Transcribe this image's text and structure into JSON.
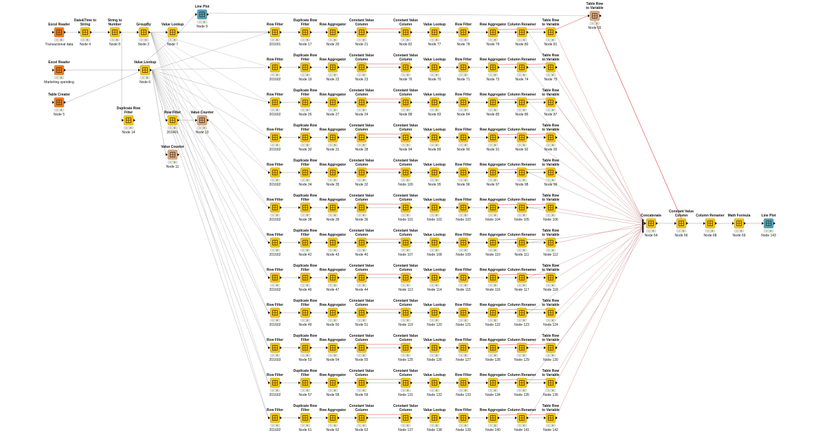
{
  "workflow": {
    "colors": {
      "manipulator": "#f5c518",
      "source": "#f07c22",
      "other": "#d9a98a",
      "visualizer": "#4aa3c9",
      "status_green": "#7fbf3f",
      "conn_gray": "#9a9a9a",
      "conn_red": "#e03a2f"
    },
    "rows": [
      {
        "cells": [
          {
            "title": "Row Filter",
            "sub": "201601"
          },
          {
            "title": "Duplicate Row Filter",
            "sub": "Node 17"
          },
          {
            "title": "Row Aggregator",
            "sub": "Node 20"
          },
          {
            "title": "Constant Value Column",
            "sub": "Node 21"
          },
          {
            "title": "Constant Value Column",
            "sub": "Node 82"
          },
          {
            "title": "Value Lookup",
            "sub": "Node 77"
          },
          {
            "title": "Row Filter",
            "sub": "Node 78"
          },
          {
            "title": "Row Aggregator",
            "sub": "Node 79"
          },
          {
            "title": "Column Renamer",
            "sub": "Node 80"
          },
          {
            "title": "Table Row to Variable",
            "sub": "Node 81"
          }
        ]
      },
      {
        "cells": [
          {
            "title": "Row Filter",
            "sub": "201602"
          },
          {
            "title": "Duplicate Row Filter",
            "sub": "Node 19"
          },
          {
            "title": "Row Aggregator",
            "sub": "Node 22"
          },
          {
            "title": "Constant Value Column",
            "sub": "Node 23"
          },
          {
            "title": "Constant Value Column",
            "sub": "Node 76"
          },
          {
            "title": "Value Lookup",
            "sub": "Node 70"
          },
          {
            "title": "Row Filter",
            "sub": "Node 71"
          },
          {
            "title": "Row Aggregator",
            "sub": "Node 73"
          },
          {
            "title": "Column Renamer",
            "sub": "Node 74"
          },
          {
            "title": "Table Row to Variable",
            "sub": "Node 75"
          }
        ]
      },
      {
        "cells": [
          {
            "title": "Row Filter",
            "sub": "201602"
          },
          {
            "title": "Duplicate Row Filter",
            "sub": "Node 26"
          },
          {
            "title": "Row Aggregator",
            "sub": "Node 27"
          },
          {
            "title": "Constant Value Column",
            "sub": "Node 24"
          },
          {
            "title": "Constant Value Column",
            "sub": "Node 88"
          },
          {
            "title": "Value Lookup",
            "sub": "Node 83"
          },
          {
            "title": "Row Filter",
            "sub": "Node 84"
          },
          {
            "title": "Row Aggregator",
            "sub": "Node 85"
          },
          {
            "title": "Column Renamer",
            "sub": "Node 86"
          },
          {
            "title": "Table Row to Variable",
            "sub": "Node 87"
          }
        ]
      },
      {
        "cells": [
          {
            "title": "Row Filter",
            "sub": "201602"
          },
          {
            "title": "Duplicate Row Filter",
            "sub": "Node 30"
          },
          {
            "title": "Row Aggregator",
            "sub": "Node 31"
          },
          {
            "title": "Constant Value Column",
            "sub": "Node 28"
          },
          {
            "title": "Constant Value Column",
            "sub": "Node 94"
          },
          {
            "title": "Value Lookup",
            "sub": "Node 89"
          },
          {
            "title": "Row Filter",
            "sub": "Node 90"
          },
          {
            "title": "Row Aggregator",
            "sub": "Node 91"
          },
          {
            "title": "Column Renamer",
            "sub": "Node 92"
          },
          {
            "title": "Table Row to Variable",
            "sub": "Node 93"
          }
        ]
      },
      {
        "cells": [
          {
            "title": "Row Filter",
            "sub": "201602"
          },
          {
            "title": "Duplicate Row Filter",
            "sub": "Node 34"
          },
          {
            "title": "Row Aggregator",
            "sub": "Node 35"
          },
          {
            "title": "Constant Value Column",
            "sub": "Node 32"
          },
          {
            "title": "Constant Value Column",
            "sub": "Node 100"
          },
          {
            "title": "Value Lookup",
            "sub": "Node 95"
          },
          {
            "title": "Row Filter",
            "sub": "Node 96"
          },
          {
            "title": "Row Aggregator",
            "sub": "Node 97"
          },
          {
            "title": "Column Renamer",
            "sub": "Node 98"
          },
          {
            "title": "Table Row to Variable",
            "sub": "Node 99"
          }
        ]
      },
      {
        "cells": [
          {
            "title": "Row Filter",
            "sub": "201602"
          },
          {
            "title": "Duplicate Row Filter",
            "sub": "Node 38"
          },
          {
            "title": "Row Aggregator",
            "sub": "Node 39"
          },
          {
            "title": "Constant Value Column",
            "sub": "Node 36"
          },
          {
            "title": "Constant Value Column",
            "sub": "Node 101"
          },
          {
            "title": "Value Lookup",
            "sub": "Node 102"
          },
          {
            "title": "Row Filter",
            "sub": "Node 103"
          },
          {
            "title": "Row Aggregator",
            "sub": "Node 104"
          },
          {
            "title": "Column Renamer",
            "sub": "Node 105"
          },
          {
            "title": "Table Row to Variable",
            "sub": "Node 106"
          }
        ]
      },
      {
        "cells": [
          {
            "title": "Row Filter",
            "sub": "201602"
          },
          {
            "title": "Duplicate Row Filter",
            "sub": "Node 42"
          },
          {
            "title": "Row Aggregator",
            "sub": "Node 43"
          },
          {
            "title": "Constant Value Column",
            "sub": "Node 40"
          },
          {
            "title": "Constant Value Column",
            "sub": "Node 107"
          },
          {
            "title": "Value Lookup",
            "sub": "Node 108"
          },
          {
            "title": "Row Filter",
            "sub": "Node 109"
          },
          {
            "title": "Row Aggregator",
            "sub": "Node 110"
          },
          {
            "title": "Column Renamer",
            "sub": "Node 111"
          },
          {
            "title": "Table Row to Variable",
            "sub": "Node 112"
          }
        ]
      },
      {
        "cells": [
          {
            "title": "Row Filter",
            "sub": "201602"
          },
          {
            "title": "Duplicate Row Filter",
            "sub": "Node 46"
          },
          {
            "title": "Row Aggregator",
            "sub": "Node 47"
          },
          {
            "title": "Constant Value Column",
            "sub": "Node 44"
          },
          {
            "title": "Constant Value Column",
            "sub": "Node 113"
          },
          {
            "title": "Value Lookup",
            "sub": "Node 114"
          },
          {
            "title": "Row Filter",
            "sub": "Node 115"
          },
          {
            "title": "Row Aggregator",
            "sub": "Node 116"
          },
          {
            "title": "Column Renamer",
            "sub": "Node 117"
          },
          {
            "title": "Table Row to Variable",
            "sub": "Node 118"
          }
        ]
      },
      {
        "cells": [
          {
            "title": "Row Filter",
            "sub": "201602"
          },
          {
            "title": "Duplicate Row Filter",
            "sub": "Node 49"
          },
          {
            "title": "Row Aggregator",
            "sub": "Node 50"
          },
          {
            "title": "Constant Value Column",
            "sub": "Node 51"
          },
          {
            "title": "Constant Value Column",
            "sub": "Node 119"
          },
          {
            "title": "Value Lookup",
            "sub": "Node 120"
          },
          {
            "title": "Row Filter",
            "sub": "Node 121"
          },
          {
            "title": "Row Aggregator",
            "sub": "Node 122"
          },
          {
            "title": "Column Renamer",
            "sub": "Node 123"
          },
          {
            "title": "Table Row to Variable",
            "sub": "Node 124"
          }
        ]
      },
      {
        "cells": [
          {
            "title": "Row Filter",
            "sub": "201603"
          },
          {
            "title": "Duplicate Row Filter",
            "sub": "Node 53"
          },
          {
            "title": "Row Aggregator",
            "sub": "Node 54"
          },
          {
            "title": "Constant Value Column",
            "sub": "Node 55"
          },
          {
            "title": "Constant Value Column",
            "sub": "Node 125"
          },
          {
            "title": "Value Lookup",
            "sub": "Node 126"
          },
          {
            "title": "Row Filter",
            "sub": "Node 127"
          },
          {
            "title": "Row Aggregator",
            "sub": "Node 128"
          },
          {
            "title": "Column Renamer",
            "sub": "Node 129"
          },
          {
            "title": "Table Row to Variable",
            "sub": "Node 130"
          }
        ]
      },
      {
        "cells": [
          {
            "title": "Row Filter",
            "sub": "201602"
          },
          {
            "title": "Duplicate Row Filter",
            "sub": "Node 57"
          },
          {
            "title": "Row Aggregator",
            "sub": "Node 58"
          },
          {
            "title": "Constant Value Column",
            "sub": "Node 59"
          },
          {
            "title": "Constant Value Column",
            "sub": "Node 131"
          },
          {
            "title": "Value Lookup",
            "sub": "Node 132"
          },
          {
            "title": "Row Filter",
            "sub": "Node 133"
          },
          {
            "title": "Row Aggregator",
            "sub": "Node 134"
          },
          {
            "title": "Column Renamer",
            "sub": "Node 135"
          },
          {
            "title": "Table Row to Variable",
            "sub": "Node 136"
          }
        ]
      },
      {
        "cells": [
          {
            "title": "Row Filter",
            "sub": "201602"
          },
          {
            "title": "Duplicate Row Filter",
            "sub": "Node 61"
          },
          {
            "title": "Row Aggregator",
            "sub": "Node 62"
          },
          {
            "title": "Constant Value Column",
            "sub": "Node 63"
          },
          {
            "title": "Constant Value Column",
            "sub": "Node 137"
          },
          {
            "title": "Value Lookup",
            "sub": "Node 138"
          },
          {
            "title": "Row Filter",
            "sub": "Node 139"
          },
          {
            "title": "Row Aggregator",
            "sub": "Node 140"
          },
          {
            "title": "Column Renamer",
            "sub": "Node 141"
          },
          {
            "title": "Table Row to Variable",
            "sub": "Node 142"
          }
        ]
      }
    ],
    "left_nodes": [
      {
        "id": "excel1",
        "title": "Excel Reader",
        "sub": "Transactional data",
        "kind": "source",
        "icon": "excel-reader-icon"
      },
      {
        "id": "dt2s",
        "title": "Date&Time to String",
        "sub": "Node 4",
        "kind": "manipulator",
        "icon": "datetime-to-string-icon"
      },
      {
        "id": "s2n",
        "title": "String to Number",
        "sub": "Node 8",
        "kind": "manipulator",
        "icon": "string-to-number-icon"
      },
      {
        "id": "groupby",
        "title": "GroupBy",
        "sub": "Node 3",
        "kind": "manipulator",
        "icon": "groupby-icon"
      },
      {
        "id": "vl7",
        "title": "Value Lookup",
        "sub": "Node 7",
        "kind": "manipulator",
        "icon": "value-lookup-icon"
      },
      {
        "id": "plot9",
        "title": "Line Plot",
        "sub": "Node 9",
        "kind": "visualizer",
        "icon": "line-plot-icon"
      },
      {
        "id": "excel2",
        "title": "Excel Reader",
        "sub": "Marketing spending",
        "kind": "source",
        "icon": "excel-reader-icon"
      },
      {
        "id": "vl6",
        "title": "Value Lookup",
        "sub": "Node 6",
        "kind": "manipulator",
        "icon": "value-lookup-icon"
      },
      {
        "id": "tc5",
        "title": "Table Creator",
        "sub": "Node 5",
        "kind": "source",
        "icon": "table-creator-icon"
      },
      {
        "id": "drf14",
        "title": "Duplicate Row Filter",
        "sub": "Node 14",
        "kind": "manipulator",
        "icon": "duplicate-row-filter-icon"
      },
      {
        "id": "rf201401",
        "title": "Row Filter",
        "sub": "201401",
        "kind": "manipulator",
        "icon": "row-filter-icon"
      },
      {
        "id": "vc13",
        "title": "Value Counter",
        "sub": "Node 13",
        "kind": "other",
        "icon": "value-counter-icon"
      },
      {
        "id": "vc11",
        "title": "Value Counter",
        "sub": "Node 11",
        "kind": "other",
        "icon": "value-counter-icon"
      }
    ],
    "right_nodes": [
      {
        "id": "trv65",
        "title": "Table Row to Variable",
        "sub": "Node 65",
        "kind": "other",
        "icon": "table-row-to-variable-icon"
      },
      {
        "id": "concat",
        "title": "Concatenate",
        "sub": "Node 64",
        "kind": "manipulator",
        "icon": "concatenate-icon"
      },
      {
        "id": "cvc66",
        "title": "Constant Value Column",
        "sub": "Node 66",
        "kind": "manipulator",
        "icon": "constant-value-column-icon"
      },
      {
        "id": "cr68",
        "title": "Column Renamer",
        "sub": "Node 68",
        "kind": "manipulator",
        "icon": "column-renamer-icon"
      },
      {
        "id": "mf69",
        "title": "Math Formula",
        "sub": "Node 69",
        "kind": "manipulator",
        "icon": "math-formula-icon"
      },
      {
        "id": "plot143",
        "title": "Line Plot",
        "sub": "Node 143",
        "kind": "visualizer",
        "icon": "line-plot-icon"
      }
    ]
  }
}
